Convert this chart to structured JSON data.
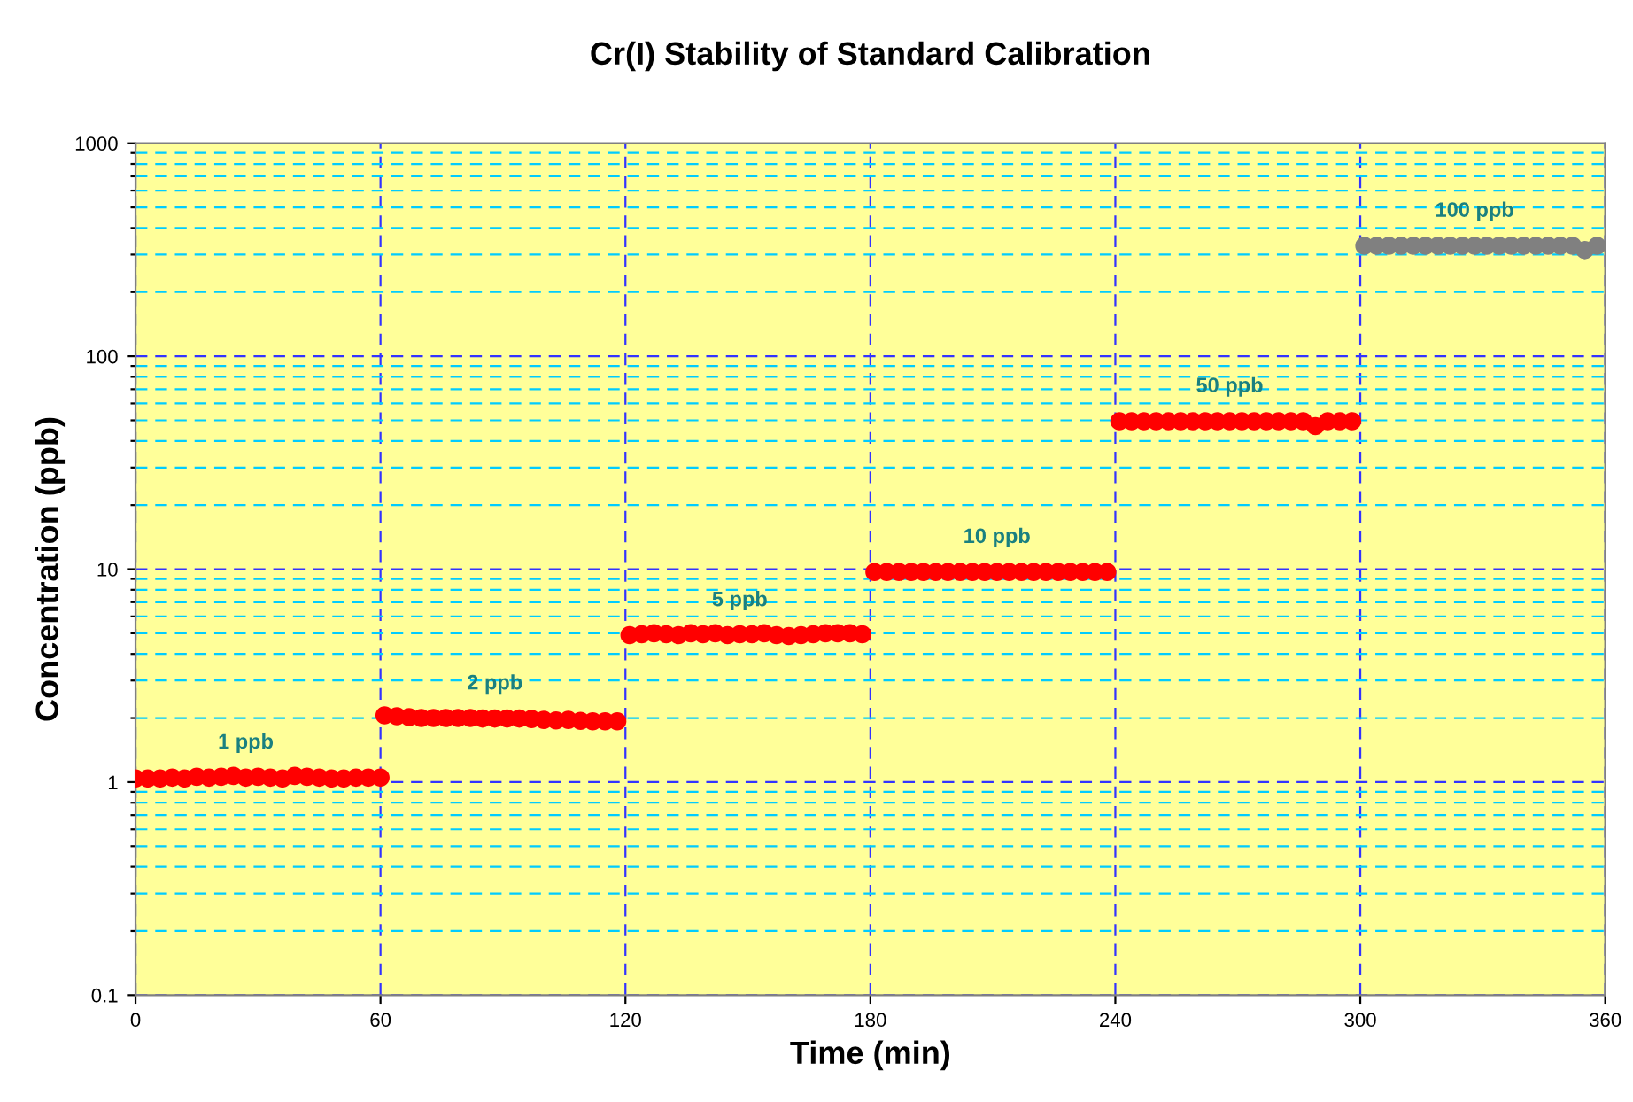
{
  "chart_data": {
    "type": "scatter",
    "title": "Cr(I) Stability of Standard Calibration",
    "xlabel": "Time (min)",
    "ylabel": "Concentration (ppb)",
    "log": "y",
    "xlim": [
      0,
      360
    ],
    "xticks": [
      0,
      60,
      120,
      180,
      240,
      300,
      360
    ],
    "ylim": [
      0.1,
      1000
    ],
    "yticks": [
      0.1,
      {
        "value": 0.2,
        "label": null
      },
      {
        "value": 0.3,
        "label": null
      },
      {
        "value": 0.4,
        "label": null
      },
      {
        "value": 0.5,
        "label": null
      },
      {
        "value": 0.6,
        "label": null
      },
      {
        "value": 0.7,
        "label": null
      },
      {
        "value": 0.8,
        "label": null
      },
      {
        "value": 0.9,
        "label": null
      },
      1,
      {
        "value": 2,
        "label": null
      },
      {
        "value": 3,
        "label": null
      },
      {
        "value": 4,
        "label": null
      },
      {
        "value": 5,
        "label": null
      },
      {
        "value": 6,
        "label": null
      },
      {
        "value": 7,
        "label": null
      },
      {
        "value": 8,
        "label": null
      },
      {
        "value": 9,
        "label": null
      },
      10,
      {
        "value": 20,
        "label": null
      },
      {
        "value": 30,
        "label": null
      },
      {
        "value": 40,
        "label": null
      },
      {
        "value": 50,
        "label": null
      },
      {
        "value": 60,
        "label": null
      },
      {
        "value": 70,
        "label": null
      },
      {
        "value": 80,
        "label": null
      },
      {
        "value": 90,
        "label": null
      },
      100,
      {
        "value": 200,
        "label": null
      },
      {
        "value": 300,
        "label": null
      },
      {
        "value": 400,
        "label": null
      },
      {
        "value": 500,
        "label": null
      },
      {
        "value": 600,
        "label": null
      },
      {
        "value": 700,
        "label": null
      },
      {
        "value": 800,
        "label": null
      },
      {
        "value": 900,
        "label": null
      },
      1000
    ],
    "grid": true,
    "legend": false,
    "marker": "circle",
    "series": [
      {
        "color": "#ff0000",
        "x": [
          0,
          3,
          6,
          9,
          12,
          15,
          18,
          21,
          24,
          27,
          30,
          33,
          36,
          39,
          42,
          45,
          48,
          51,
          54,
          57,
          60,
          61,
          64,
          67,
          70,
          73,
          76,
          79,
          82,
          85,
          88,
          91,
          94,
          97,
          100,
          103,
          106,
          109,
          112,
          115,
          118,
          121,
          124,
          127,
          130,
          133,
          136,
          139,
          142,
          145,
          148,
          151,
          154,
          157,
          160,
          163,
          166,
          169,
          172,
          175,
          178,
          181,
          184,
          187,
          190,
          193,
          196,
          199,
          202,
          205,
          208,
          211,
          214,
          217,
          220,
          223,
          226,
          229,
          232,
          235,
          238,
          241,
          244,
          247,
          250,
          253,
          256,
          259,
          262,
          265,
          268,
          271,
          274,
          277,
          280,
          283,
          286,
          289,
          292,
          295,
          298
        ],
        "values": [
          1.04,
          1.04,
          1.04,
          1.05,
          1.04,
          1.06,
          1.05,
          1.06,
          1.07,
          1.05,
          1.06,
          1.05,
          1.04,
          1.07,
          1.06,
          1.05,
          1.04,
          1.04,
          1.05,
          1.05,
          1.05,
          2.06,
          2.04,
          2.02,
          2.0,
          2.0,
          2.0,
          2.0,
          2.0,
          1.99,
          1.99,
          1.99,
          1.99,
          1.98,
          1.96,
          1.95,
          1.96,
          1.94,
          1.93,
          1.93,
          1.93,
          4.9,
          4.95,
          5.0,
          4.95,
          4.9,
          5.0,
          4.95,
          5.0,
          4.9,
          4.95,
          4.95,
          5.0,
          4.9,
          4.85,
          4.9,
          4.95,
          5.0,
          5.0,
          5.0,
          4.95,
          9.7,
          9.7,
          9.7,
          9.7,
          9.7,
          9.7,
          9.7,
          9.7,
          9.7,
          9.7,
          9.7,
          9.7,
          9.7,
          9.7,
          9.7,
          9.7,
          9.7,
          9.7,
          9.7,
          9.7,
          49.5,
          49.5,
          49.5,
          49.5,
          49.5,
          49.5,
          49.5,
          49.5,
          49.5,
          49.5,
          49.5,
          49.5,
          49.5,
          49.5,
          49.5,
          49.5,
          47,
          49.5,
          49.5,
          49.5
        ]
      },
      {
        "color": "#808080",
        "x": [
          301,
          304,
          307,
          310,
          313,
          316,
          319,
          322,
          325,
          328,
          331,
          334,
          337,
          340,
          343,
          346,
          349,
          352,
          355,
          358
        ],
        "values": [
          330,
          330,
          330,
          330,
          330,
          330,
          330,
          330,
          330,
          330,
          330,
          330,
          330,
          330,
          330,
          330,
          330,
          330,
          315,
          330
        ]
      }
    ],
    "annotations": [
      {
        "text": "1 ppb",
        "x": 27,
        "y": 1.05
      },
      {
        "text": "2 ppb",
        "x": 88,
        "y": 1.99
      },
      {
        "text": "5 ppb",
        "x": 148,
        "y": 4.9
      },
      {
        "text": "10 ppb",
        "x": 211,
        "y": 9.7
      },
      {
        "text": "50 ppb",
        "x": 268,
        "y": 49.5
      },
      {
        "text": "100 ppb",
        "x": 328,
        "y": 330
      }
    ]
  }
}
